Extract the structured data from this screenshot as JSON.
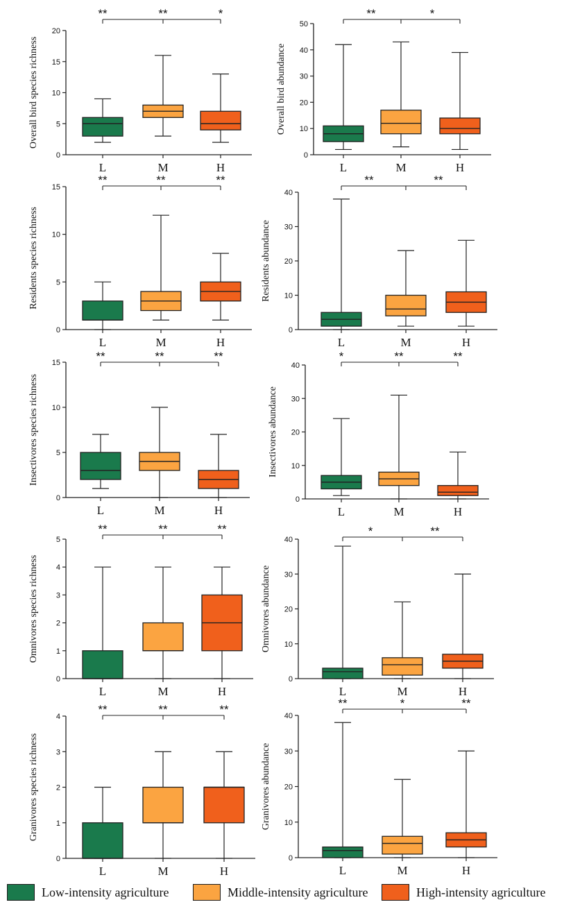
{
  "colors": {
    "L": "#1a7a4c",
    "M": "#fba441",
    "H": "#f0601c"
  },
  "legend": [
    {
      "key": "L",
      "label": "Low-intensity agriculture"
    },
    {
      "key": "M",
      "label": "Middle-intensity agriculture"
    },
    {
      "key": "H",
      "label": "High-intensity agriculture"
    }
  ],
  "chart_data": [
    {
      "type": "box",
      "ylabel": "Overall bird species richness",
      "categories": [
        "L",
        "M",
        "H"
      ],
      "ylim": [
        0,
        20
      ],
      "yticks": [
        0,
        5,
        10,
        15,
        20
      ],
      "boxes": [
        {
          "min": 2,
          "q1": 3,
          "median": 5,
          "q3": 6,
          "max": 9
        },
        {
          "min": 3,
          "q1": 6,
          "median": 7,
          "q3": 8,
          "max": 16
        },
        {
          "min": 2,
          "q1": 4,
          "median": 5,
          "q3": 7,
          "max": 13
        }
      ],
      "significance": [
        "**",
        "**",
        "*"
      ]
    },
    {
      "type": "box",
      "ylabel": "Overall bird abundance",
      "categories": [
        "L",
        "M",
        "H"
      ],
      "ylim": [
        0,
        50
      ],
      "yticks": [
        0,
        10,
        20,
        30,
        40,
        50
      ],
      "boxes": [
        {
          "min": 2,
          "q1": 5,
          "median": 8,
          "q3": 11,
          "max": 42
        },
        {
          "min": 3,
          "q1": 8,
          "median": 12,
          "q3": 17,
          "max": 43
        },
        {
          "min": 2,
          "q1": 8,
          "median": 10,
          "q3": 14,
          "max": 39
        }
      ],
      "significance": [
        "**",
        "*"
      ]
    },
    {
      "type": "box",
      "ylabel": "Residents species richness",
      "categories": [
        "L",
        "M",
        "H"
      ],
      "ylim": [
        0,
        15
      ],
      "yticks": [
        0,
        5,
        10,
        15
      ],
      "boxes": [
        {
          "min": 0,
          "q1": 1,
          "median": 1,
          "q3": 3,
          "max": 5
        },
        {
          "min": 1,
          "q1": 2,
          "median": 3,
          "q3": 4,
          "max": 12
        },
        {
          "min": 1,
          "q1": 3,
          "median": 4,
          "q3": 5,
          "max": 8
        }
      ],
      "significance": [
        "**",
        "**",
        "**"
      ]
    },
    {
      "type": "box",
      "ylabel": "Residents abundance",
      "categories": [
        "L",
        "M",
        "H"
      ],
      "ylim": [
        0,
        40
      ],
      "yticks": [
        0,
        10,
        20,
        30,
        40
      ],
      "boxes": [
        {
          "min": 0,
          "q1": 1,
          "median": 3,
          "q3": 5,
          "max": 38
        },
        {
          "min": 1,
          "q1": 4,
          "median": 6,
          "q3": 10,
          "max": 23
        },
        {
          "min": 1,
          "q1": 5,
          "median": 8,
          "q3": 11,
          "max": 26
        }
      ],
      "significance": [
        "**",
        "**"
      ]
    },
    {
      "type": "box",
      "ylabel": "Insectivores species richness",
      "categories": [
        "L",
        "M",
        "H"
      ],
      "ylim": [
        0,
        15
      ],
      "yticks": [
        0,
        5,
        10,
        15
      ],
      "boxes": [
        {
          "min": 1,
          "q1": 2,
          "median": 3,
          "q3": 5,
          "max": 7
        },
        {
          "min": 0,
          "q1": 3,
          "median": 4,
          "q3": 5,
          "max": 10
        },
        {
          "min": 0,
          "q1": 1,
          "median": 2,
          "q3": 3,
          "max": 7
        }
      ],
      "significance": [
        "**",
        "**",
        "**"
      ]
    },
    {
      "type": "box",
      "ylabel": "Insectivores  abundance",
      "categories": [
        "L",
        "M",
        "H"
      ],
      "ylim": [
        0,
        40
      ],
      "yticks": [
        0,
        10,
        20,
        30,
        40
      ],
      "boxes": [
        {
          "min": 1,
          "q1": 3,
          "median": 5,
          "q3": 7,
          "max": 24
        },
        {
          "min": 0,
          "q1": 4,
          "median": 6,
          "q3": 8,
          "max": 31
        },
        {
          "min": 0,
          "q1": 1,
          "median": 2,
          "q3": 4,
          "max": 14
        }
      ],
      "significance": [
        "*",
        "**",
        "**"
      ]
    },
    {
      "type": "box",
      "ylabel": "Omnivores species richness",
      "categories": [
        "L",
        "M",
        "H"
      ],
      "ylim": [
        0,
        5
      ],
      "yticks": [
        0,
        1,
        2,
        3,
        4,
        5
      ],
      "boxes": [
        {
          "min": 0,
          "q1": 0,
          "median": 0,
          "q3": 1,
          "max": 4
        },
        {
          "min": 0,
          "q1": 1,
          "median": 1,
          "q3": 2,
          "max": 4
        },
        {
          "min": 0,
          "q1": 1,
          "median": 2,
          "q3": 3,
          "max": 4
        }
      ],
      "significance": [
        "**",
        "**",
        "**"
      ]
    },
    {
      "type": "box",
      "ylabel": "Omnivores  abundance",
      "categories": [
        "L",
        "M",
        "H"
      ],
      "ylim": [
        0,
        40
      ],
      "yticks": [
        0,
        10,
        20,
        30,
        40
      ],
      "boxes": [
        {
          "min": 0,
          "q1": 0,
          "median": 2,
          "q3": 3,
          "max": 38
        },
        {
          "min": 0,
          "q1": 1,
          "median": 4,
          "q3": 6,
          "max": 22
        },
        {
          "min": 0,
          "q1": 3,
          "median": 5,
          "q3": 7,
          "max": 30
        }
      ],
      "significance": [
        "*",
        "**"
      ]
    },
    {
      "type": "box",
      "ylabel": "Granivores species richness",
      "categories": [
        "L",
        "M",
        "H"
      ],
      "ylim": [
        0,
        4
      ],
      "yticks": [
        0,
        1,
        2,
        3,
        4
      ],
      "boxes": [
        {
          "min": 0,
          "q1": 0,
          "median": 0,
          "q3": 1,
          "max": 2
        },
        {
          "min": 0,
          "q1": 1,
          "median": 1,
          "q3": 2,
          "max": 3
        },
        {
          "min": 0,
          "q1": 1,
          "median": 2,
          "q3": 2,
          "max": 3
        }
      ],
      "significance": [
        "**",
        "**",
        "**"
      ]
    },
    {
      "type": "box",
      "ylabel": "Granivores abundance",
      "categories": [
        "L",
        "M",
        "H"
      ],
      "ylim": [
        0,
        40
      ],
      "yticks": [
        0,
        10,
        20,
        30,
        40
      ],
      "boxes": [
        {
          "min": 0,
          "q1": 0,
          "median": 2,
          "q3": 3,
          "max": 38
        },
        {
          "min": 0,
          "q1": 1,
          "median": 4,
          "q3": 6,
          "max": 22
        },
        {
          "min": 0,
          "q1": 3,
          "median": 5,
          "q3": 7,
          "max": 30
        }
      ],
      "significance": [
        "**",
        "*",
        "**"
      ]
    }
  ]
}
